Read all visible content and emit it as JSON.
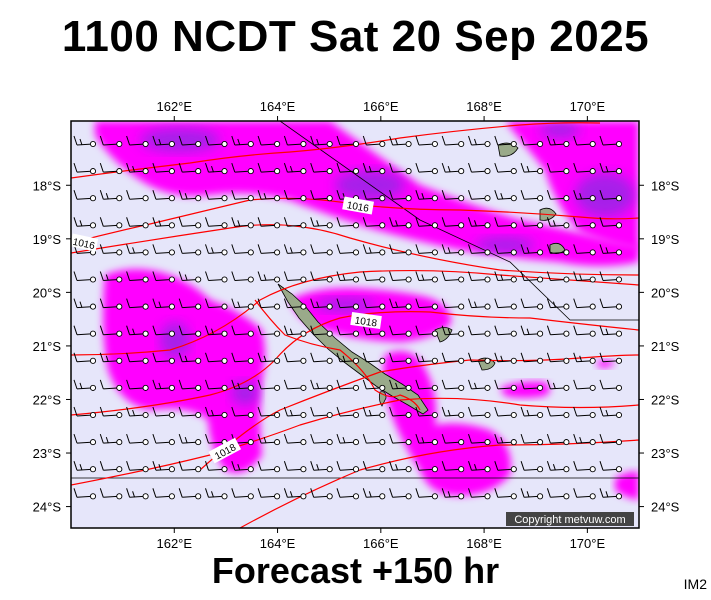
{
  "title": "1100 NCDT Sat 20 Sep 2025",
  "footer": "Forecast +150 hr",
  "badge": "IM2",
  "copyright": "Copyright metvuw.com",
  "map": {
    "lon_range": [
      160.0,
      171.0
    ],
    "lat_range": [
      -24.4,
      -16.8
    ],
    "lon_ticks": [
      {
        "value": 162,
        "label": "162°E"
      },
      {
        "value": 164,
        "label": "164°E"
      },
      {
        "value": 166,
        "label": "166°E"
      },
      {
        "value": 168,
        "label": "168°E"
      },
      {
        "value": 170,
        "label": "170°E"
      }
    ],
    "lat_ticks": [
      {
        "value": -18,
        "label": "18°S"
      },
      {
        "value": -19,
        "label": "19°S"
      },
      {
        "value": -20,
        "label": "20°S"
      },
      {
        "value": -21,
        "label": "21°S"
      },
      {
        "value": -22,
        "label": "22°S"
      },
      {
        "value": -23,
        "label": "23°S"
      },
      {
        "value": -24,
        "label": "24°S"
      }
    ],
    "isobar_labels": [
      "1016",
      "1016",
      "1018",
      "1018"
    ],
    "colors": {
      "background": "#e6e6fa",
      "rain_light": "#ff00ff",
      "rain_heavy": "#8800ff",
      "isobar": "#ff0000",
      "land": "#9aaa8a"
    }
  }
}
